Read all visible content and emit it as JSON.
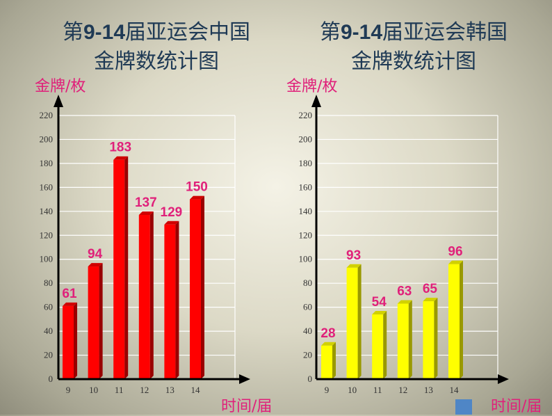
{
  "charts": [
    {
      "title_pre": "第",
      "title_num": "9-14",
      "title_post": "届亚运会中国",
      "title_line2": "金牌数统计图",
      "ylabel": "金牌/枚",
      "xlabel": "时间/届"
    },
    {
      "title_pre": "第",
      "title_num": "9-14",
      "title_post": "届亚运会韩国",
      "title_line2": "金牌数统计图",
      "ylabel": "金牌/枚",
      "xlabel": "时间/届"
    }
  ],
  "chart_data": [
    {
      "type": "bar",
      "title": "第9-14届亚运会中国金牌数统计图",
      "xlabel": "时间/届",
      "ylabel": "金牌/枚",
      "categories": [
        "9",
        "10",
        "11",
        "12",
        "13",
        "14"
      ],
      "values": [
        61,
        94,
        183,
        137,
        129,
        150
      ],
      "ylim": [
        0,
        220
      ],
      "yticks": [
        0,
        20,
        40,
        60,
        80,
        100,
        120,
        140,
        160,
        180,
        200,
        220
      ],
      "grid": true,
      "bar_color": "#ff0000",
      "label_color": "#e0207a"
    },
    {
      "type": "bar",
      "title": "第9-14届亚运会韩国金牌数统计图",
      "xlabel": "时间/届",
      "ylabel": "金牌/枚",
      "categories": [
        "9",
        "10",
        "11",
        "12",
        "13",
        "14"
      ],
      "values": [
        28,
        93,
        54,
        63,
        65,
        96
      ],
      "ylim": [
        0,
        220
      ],
      "yticks": [
        0,
        20,
        40,
        60,
        80,
        100,
        120,
        140,
        160,
        180,
        200,
        220
      ],
      "grid": true,
      "bar_color": "#ffff00",
      "label_color": "#e0207a"
    }
  ]
}
